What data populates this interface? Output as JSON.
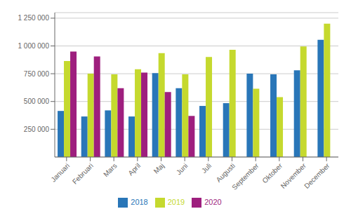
{
  "chart_data": {
    "type": "bar",
    "categories": [
      "Januari",
      "Februari",
      "Mars",
      "April",
      "Maj",
      "Juni",
      "Juli",
      "Augusti",
      "September",
      "Oktober",
      "November",
      "December"
    ],
    "series": [
      {
        "name": "2018",
        "color": "#2976b8",
        "values": [
          415000,
          365000,
          420000,
          365000,
          755000,
          620000,
          460000,
          485000,
          750000,
          745000,
          780000,
          1055000
        ]
      },
      {
        "name": "2019",
        "color": "#c5d92e",
        "values": [
          865000,
          750000,
          745000,
          790000,
          935000,
          745000,
          900000,
          965000,
          615000,
          540000,
          995000,
          1200000
        ]
      },
      {
        "name": "2020",
        "color": "#9e1f7e",
        "values": [
          950000,
          905000,
          620000,
          760000,
          585000,
          370000,
          null,
          null,
          null,
          null,
          null,
          null
        ]
      }
    ],
    "ylim": [
      0,
      1300000
    ],
    "yticks": [
      {
        "value": 250000,
        "label": "250 000"
      },
      {
        "value": 500000,
        "label": "500 000"
      },
      {
        "value": 750000,
        "label": "750 000"
      },
      {
        "value": 1000000,
        "label": "1 000 000"
      },
      {
        "value": 1250000,
        "label": "1 250 000"
      }
    ],
    "grid": true,
    "legend": "bottom"
  }
}
